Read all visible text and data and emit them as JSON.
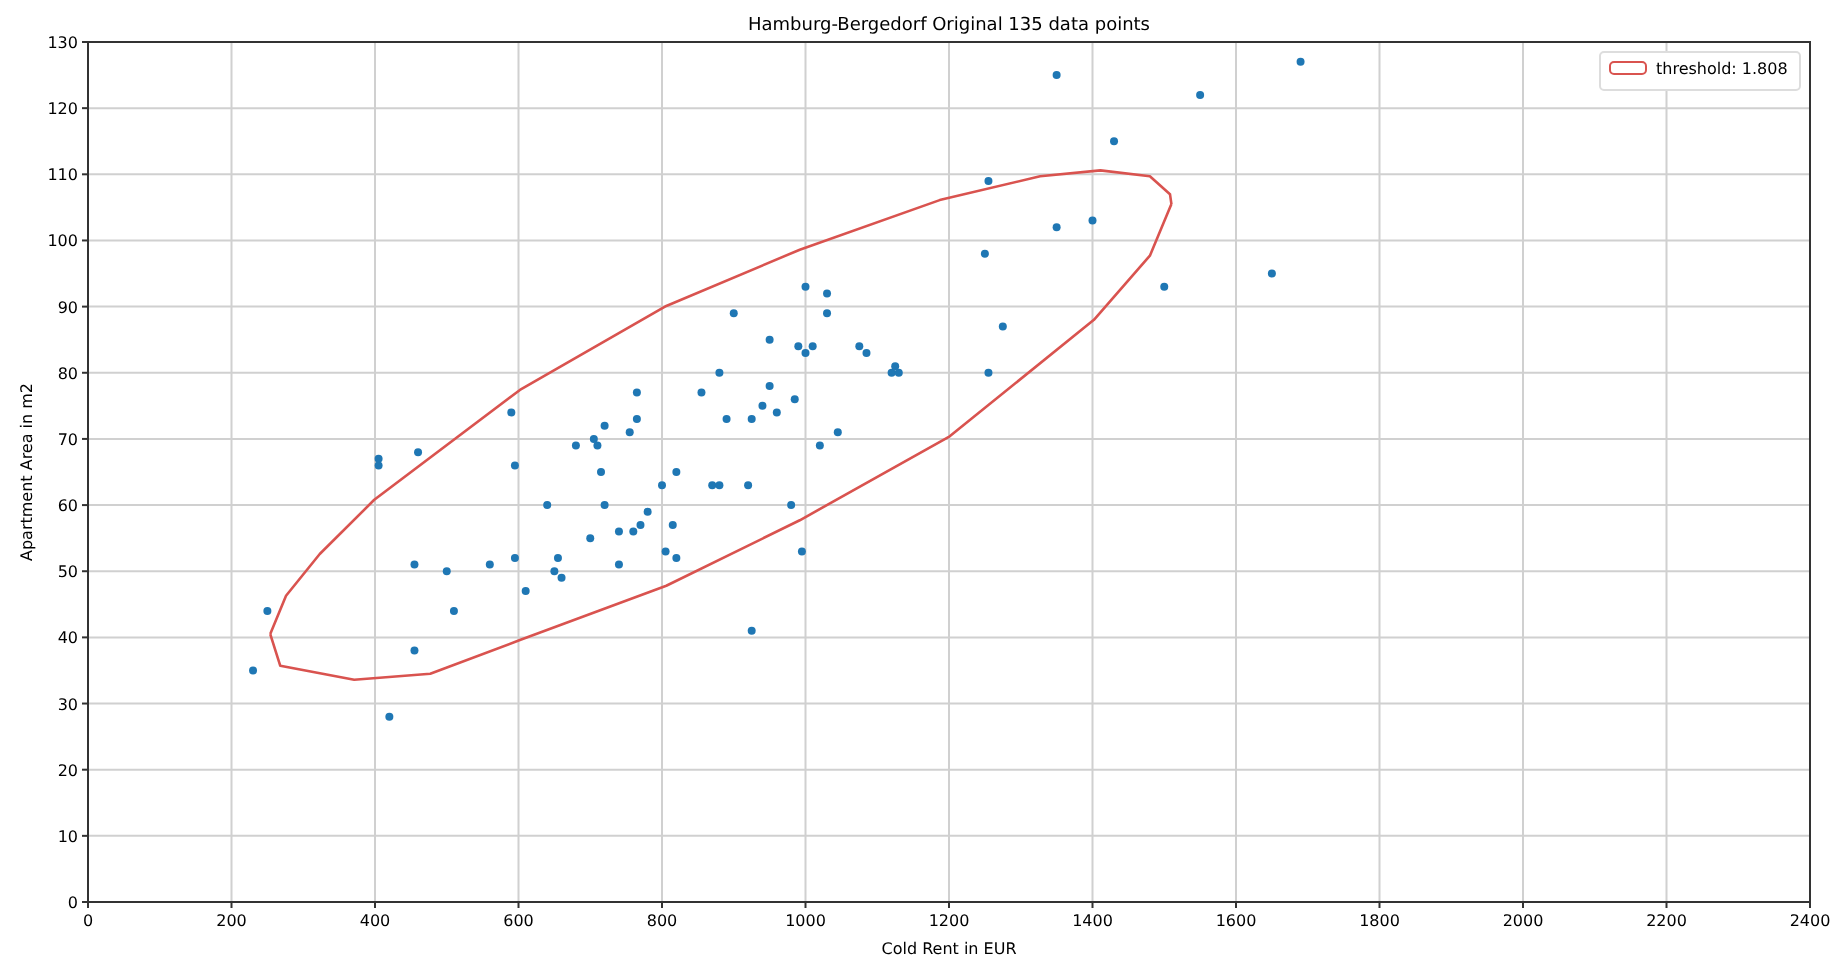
{
  "chart_data": {
    "type": "scatter",
    "title": "Hamburg-Bergedorf Original 135 data points",
    "xlabel": "Cold Rent in EUR",
    "ylabel": "Apartment Area in m2",
    "xlim": [
      0,
      2400
    ],
    "xticks": [
      0,
      200,
      400,
      600,
      800,
      1000,
      1200,
      1400,
      1600,
      1800,
      2000,
      2200,
      2400
    ],
    "ylim": [
      0,
      130
    ],
    "yticks": [
      0,
      10,
      20,
      30,
      40,
      50,
      60,
      70,
      80,
      90,
      100,
      110,
      120,
      130
    ],
    "grid": true,
    "legend": "top right",
    "marker": "circle",
    "series": [
      {
        "color": "#1f77b4",
        "x": [
          230,
          250,
          405,
          405,
          420,
          455,
          455,
          460,
          500,
          510,
          560,
          590,
          595,
          595,
          610,
          640,
          650,
          655,
          660,
          680,
          700,
          705,
          710,
          715,
          720,
          720,
          740,
          740,
          755,
          760,
          765,
          765,
          770,
          780,
          800,
          805,
          820,
          815,
          820,
          855,
          870,
          880,
          880,
          890,
          900,
          920,
          925,
          925,
          940,
          950,
          950,
          960,
          980,
          985,
          990,
          995,
          1000,
          1000,
          1010,
          1020,
          1030,
          1030,
          1045,
          1075,
          1085,
          1120,
          1125,
          1130,
          1250,
          1255,
          1255,
          1275,
          1350,
          1350,
          1400,
          1430,
          1500,
          1550,
          1650,
          1690
        ],
        "values": [
          35,
          44,
          66,
          67,
          28,
          38,
          51,
          68,
          50,
          44,
          51,
          74,
          66,
          52,
          47,
          60,
          50,
          52,
          49,
          69,
          55,
          70,
          69,
          65,
          60,
          72,
          56,
          51,
          71,
          56,
          77,
          73,
          57,
          59,
          63,
          53,
          65,
          57,
          52,
          77,
          63,
          63,
          80,
          73,
          89,
          63,
          41,
          73,
          75,
          78,
          85,
          74,
          60,
          76,
          84,
          53,
          93,
          83,
          84,
          69,
          89,
          92,
          71,
          84,
          83,
          80,
          81,
          80,
          98,
          109,
          80,
          87,
          125,
          102,
          103,
          115,
          93,
          122,
          95,
          127
        ]
      },
      {
        "type": "line",
        "name": "threshold: 1.808",
        "color": "#d9534f",
        "marker": "none",
        "x": [
          254,
          276,
          323,
          399,
          602,
          806,
          992,
          1187,
          1327,
          1411,
          1480,
          1508,
          1510
        ],
        "values": [
          40.5,
          46.3,
          52.6,
          60.8,
          77.4,
          90.1,
          98.6,
          106.1,
          109.7,
          110.6,
          109.7,
          107.0,
          105.5
        ]
      },
      {
        "type": "line",
        "color": "#d9534f",
        "marker": "none",
        "x": [
          254,
          268,
          371,
          477,
          602,
          806,
          992,
          1201,
          1402,
          1480,
          1510
        ],
        "values": [
          40.5,
          35.7,
          33.6,
          34.5,
          39.6,
          47.8,
          57.7,
          70.4,
          88.0,
          97.7,
          105.5
        ]
      }
    ]
  }
}
